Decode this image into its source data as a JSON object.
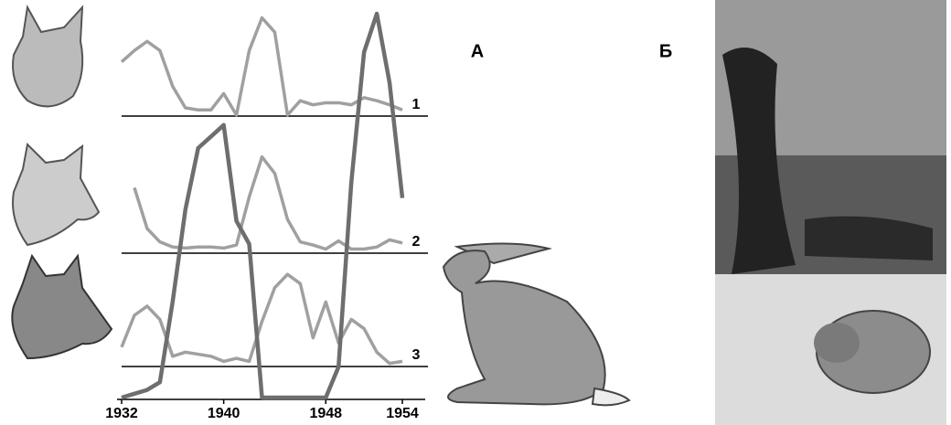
{
  "chart_data": {
    "type": "line",
    "x": [
      1932,
      1933,
      1934,
      1935,
      1936,
      1937,
      1938,
      1939,
      1940,
      1941,
      1942,
      1943,
      1944,
      1945,
      1946,
      1947,
      1948,
      1949,
      1950,
      1951,
      1952,
      1953,
      1954
    ],
    "xlim": [
      1932,
      1954
    ],
    "xticks": [
      1932,
      1940,
      1948,
      1954
    ],
    "ylim": [
      0,
      100
    ],
    "series": [
      {
        "name": "1",
        "color": "#a0a0a0",
        "values": [
          53,
          64,
          73,
          64,
          29,
          8,
          6,
          6,
          22,
          1,
          64,
          96,
          82,
          1,
          15,
          11,
          13,
          13,
          11,
          18,
          15,
          11,
          6
        ]
      },
      {
        "name": "2",
        "color": "#a0a0a0",
        "values": [
          null,
          64,
          24,
          11,
          6,
          5,
          6,
          6,
          5,
          8,
          55,
          94,
          78,
          33,
          11,
          8,
          4,
          12,
          4,
          4,
          6,
          13,
          10
        ]
      },
      {
        "name": "3",
        "color": "#a0a0a0",
        "values": [
          19,
          50,
          59,
          46,
          10,
          14,
          12,
          10,
          5,
          8,
          5,
          44,
          77,
          90,
          81,
          28,
          63,
          23,
          46,
          37,
          14,
          3,
          5
        ]
      },
      {
        "color": "#6e6e6e",
        "values": [
          0,
          1,
          2,
          4,
          25,
          49,
          65,
          68,
          71,
          46,
          40,
          0,
          0,
          0,
          0,
          0,
          0,
          8,
          56,
          90,
          100,
          82,
          52
        ]
      }
    ],
    "annotations": [
      "А",
      "Б"
    ]
  }
}
